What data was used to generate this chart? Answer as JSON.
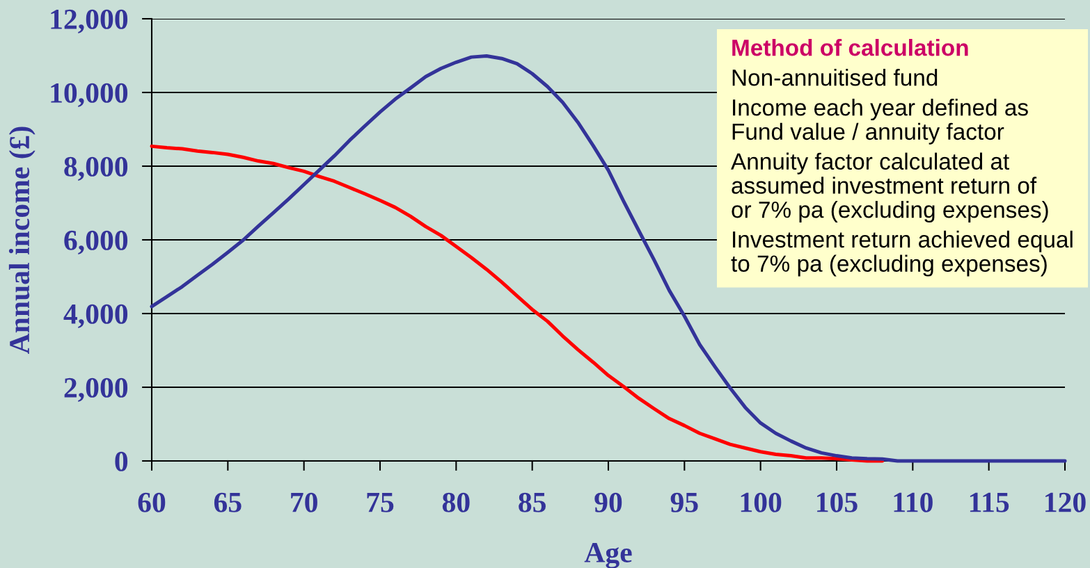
{
  "chart_data": {
    "type": "line",
    "xlabel": "Age",
    "ylabel": "Annual income (£)",
    "xlim": [
      60,
      120
    ],
    "xticks": [
      60,
      65,
      70,
      75,
      80,
      85,
      90,
      95,
      100,
      105,
      110,
      115,
      120
    ],
    "ylim": [
      0,
      12000
    ],
    "yticks": [
      0,
      {
        "value": 2000,
        "label": "2,000"
      },
      {
        "value": 4000,
        "label": "4,000"
      },
      {
        "value": 6000,
        "label": "6,000"
      },
      {
        "value": 8000,
        "label": "8,000"
      },
      {
        "value": 10000,
        "label": "10,000"
      },
      {
        "value": 12000,
        "label": "12,000"
      }
    ],
    "grid": "y",
    "line_style": "solid",
    "x": [
      60,
      61,
      62,
      63,
      64,
      65,
      66,
      67,
      68,
      69,
      70,
      71,
      72,
      73,
      74,
      75,
      76,
      77,
      78,
      79,
      80,
      81,
      82,
      83,
      84,
      85,
      86,
      87,
      88,
      89,
      90,
      91,
      92,
      93,
      94,
      95,
      96,
      97,
      98,
      99,
      100,
      101,
      102,
      103,
      104,
      105,
      106,
      107,
      108,
      109,
      110,
      111,
      112,
      113,
      114,
      115,
      116,
      117,
      118,
      119,
      120
    ],
    "series": [
      {
        "color": "#333399",
        "values": [
          4190,
          4460,
          4730,
          5040,
          5340,
          5660,
          5990,
          6370,
          6740,
          7110,
          7500,
          7890,
          8280,
          8700,
          9090,
          9470,
          9820,
          10120,
          10430,
          10650,
          10820,
          10960,
          10990,
          10920,
          10780,
          10510,
          10160,
          9730,
          9190,
          8560,
          7890,
          7050,
          6250,
          5460,
          4630,
          3930,
          3160,
          2560,
          1980,
          1450,
          1030,
          750,
          540,
          350,
          220,
          140,
          80,
          60,
          50,
          0,
          0,
          0,
          0,
          0,
          0,
          0,
          0,
          0,
          0,
          0,
          0
        ]
      },
      {
        "color": "#ff0000",
        "values": [
          8540,
          8500,
          8470,
          8410,
          8370,
          8320,
          8240,
          8140,
          8070,
          7960,
          7860,
          7720,
          7590,
          7420,
          7250,
          7070,
          6880,
          6640,
          6360,
          6120,
          5820,
          5520,
          5200,
          4850,
          4480,
          4110,
          3790,
          3390,
          3020,
          2680,
          2320,
          2020,
          1700,
          1420,
          1150,
          960,
          750,
          600,
          450,
          350,
          250,
          180,
          140,
          80,
          80,
          60,
          30,
          0,
          0,
          null,
          null,
          null,
          null,
          null,
          null,
          null,
          null,
          null,
          null,
          null,
          null
        ]
      }
    ],
    "annotations": [
      "Method of calculation",
      "Non-annuitised fund",
      "Income each year defined as\nFund value / annuity factor",
      "Annuity factor calculated at\nassumed investment return of\nor 7% pa (excluding expenses)",
      "Investment return achieved equal\nto 7% pa (excluding expenses)"
    ]
  }
}
